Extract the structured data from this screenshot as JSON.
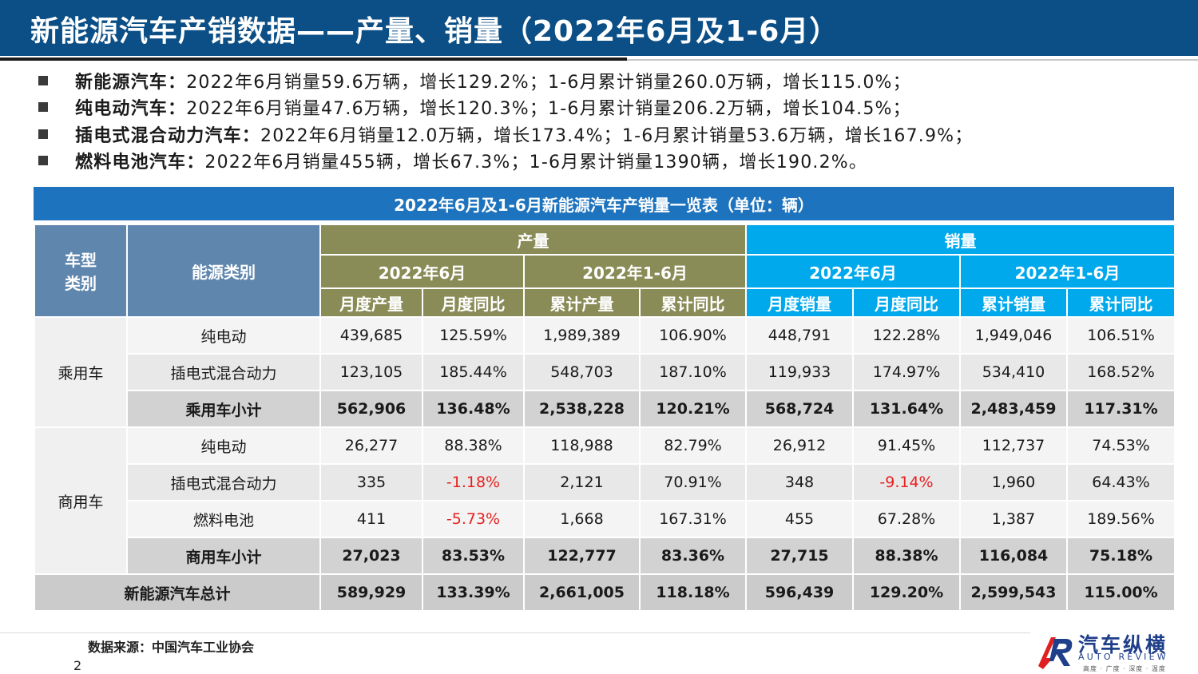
{
  "slide": {
    "title": "新能源汽车产销数据——产量、销量（2022年6月及1-6月）",
    "page_number": "2",
    "source": "数据来源：中国汽车工业协会"
  },
  "bullets": [
    {
      "label": "新能源汽车：",
      "text": "2022年6月销量59.6万辆，增长129.2%；1-6月累计销量260.0万辆，增长115.0%；"
    },
    {
      "label": "纯电动汽车：",
      "text": "2022年6月销量47.6万辆，增长120.3%；1-6月累计销量206.2万辆，增长104.5%；"
    },
    {
      "label": "插电式混合动力汽车：",
      "text": "2022年6月销量12.0万辆，增长173.4%；1-6月累计销量53.6万辆，增长167.9%；"
    },
    {
      "label": "燃料电池汽车：",
      "text": "2022年6月销量455辆，增长67.3%；1-6月累计销量1390辆，增长190.2%。"
    }
  ],
  "table": {
    "title": "2022年6月及1-6月新能源汽车产销量一览表（单位：辆）",
    "header": {
      "vehicle_type": "车型\n类别",
      "energy_type": "能源类别",
      "production": "产量",
      "sales": "销量",
      "period_month": "2022年6月",
      "period_ytd": "2022年1-6月",
      "col_prod_month": "月度产量",
      "col_yoy_month": "月度同比",
      "col_prod_cum": "累计产量",
      "col_yoy_cum": "累计同比",
      "col_sales_month": "月度销量",
      "col_sales_cum": "累计销量"
    },
    "groups": {
      "passenger": "乘用车",
      "commercial": "商用车"
    },
    "rows": [
      {
        "energy": "纯电动",
        "v": [
          "439,685",
          "125.59%",
          "1,989,389",
          "106.90%",
          "448,791",
          "122.28%",
          "1,949,046",
          "106.51%"
        ]
      },
      {
        "energy": "插电式混合动力",
        "v": [
          "123,105",
          "185.44%",
          "548,703",
          "187.10%",
          "119,933",
          "174.97%",
          "534,410",
          "168.52%"
        ]
      },
      {
        "energy": "乘用车小计",
        "v": [
          "562,906",
          "136.48%",
          "2,538,228",
          "120.21%",
          "568,724",
          "131.64%",
          "2,483,459",
          "117.31%"
        ]
      },
      {
        "energy": "纯电动",
        "v": [
          "26,277",
          "88.38%",
          "118,988",
          "82.79%",
          "26,912",
          "91.45%",
          "112,737",
          "74.53%"
        ]
      },
      {
        "energy": "插电式混合动力",
        "v": [
          "335",
          "-1.18%",
          "2,121",
          "70.91%",
          "348",
          "-9.14%",
          "1,960",
          "64.43%"
        ]
      },
      {
        "energy": "燃料电池",
        "v": [
          "411",
          "-5.73%",
          "1,668",
          "167.31%",
          "455",
          "67.28%",
          "1,387",
          "189.56%"
        ]
      },
      {
        "energy": "商用车小计",
        "v": [
          "27,023",
          "83.53%",
          "122,777",
          "83.36%",
          "27,715",
          "88.38%",
          "116,084",
          "75.18%"
        ]
      },
      {
        "energy": "新能源汽车总计",
        "v": [
          "589,929",
          "133.39%",
          "2,661,005",
          "118.18%",
          "596,439",
          "129.20%",
          "2,599,543",
          "115.00%"
        ]
      }
    ],
    "negative_color": "#e82020"
  },
  "logo": {
    "cn": "汽车纵横",
    "en": "AUTO REVIEW",
    "slogan": "高度 · 广度 · 深度 · 温度",
    "colors": {
      "blue": "#1f3f8a",
      "red": "#e02020"
    }
  },
  "colors": {
    "title_bar": "#0b4f86",
    "table_title": "#1e73be",
    "header_gray": "#5f86ad",
    "header_olive": "#8a8c58",
    "header_cyan": "#00a8ec"
  }
}
